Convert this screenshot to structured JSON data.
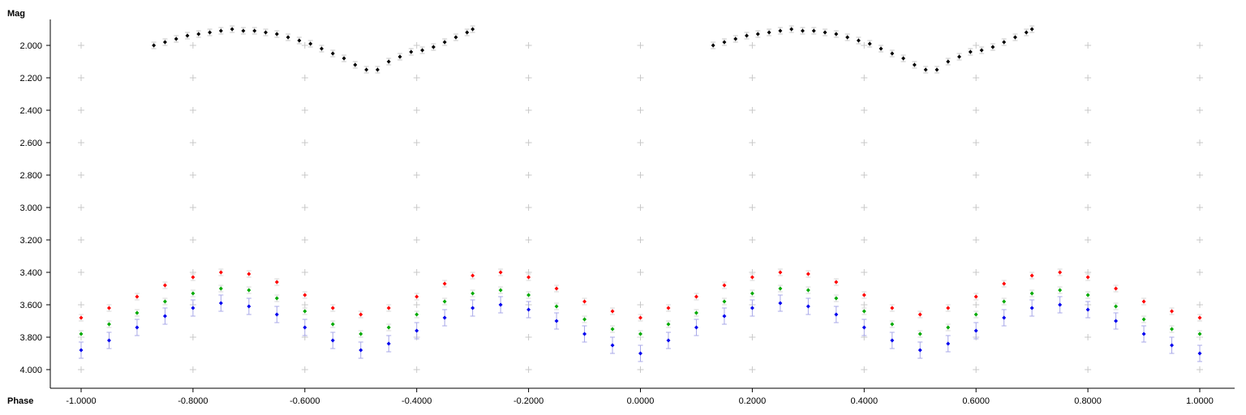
{
  "chart_data": {
    "type": "scatter",
    "title": "",
    "xlabel": "Phase",
    "ylabel": "Mag",
    "xlim": [
      -1.05,
      1.05
    ],
    "ylim": [
      1.85,
      4.05
    ],
    "y_inverted": true,
    "grid": "plus-markers",
    "x_ticks": [
      -1.0,
      -0.8,
      -0.6,
      -0.4,
      -0.2,
      0.0,
      0.2,
      0.4,
      0.6,
      0.8,
      1.0
    ],
    "x_tick_labels": [
      "-1.0000",
      "-0.8000",
      "-0.6000",
      "-0.4000",
      "-0.2000",
      "0.0000",
      "0.2000",
      "0.4000",
      "0.6000",
      "0.8000",
      "1.0000"
    ],
    "y_ticks": [
      2.0,
      2.2,
      2.4,
      2.6,
      2.8,
      3.0,
      3.2,
      3.4,
      3.6,
      3.8,
      4.0
    ],
    "y_tick_labels": [
      "2.000",
      "2.200",
      "2.400",
      "2.600",
      "2.800",
      "3.000",
      "3.200",
      "3.400",
      "3.600",
      "3.800",
      "4.000"
    ],
    "series": [
      {
        "color": "#000000",
        "error_bar_color": "#c8c8c8",
        "error": 0.02,
        "points": [
          [
            -0.87,
            2.0
          ],
          [
            -0.85,
            1.98
          ],
          [
            -0.83,
            1.96
          ],
          [
            -0.81,
            1.94
          ],
          [
            -0.79,
            1.93
          ],
          [
            -0.77,
            1.92
          ],
          [
            -0.75,
            1.91
          ],
          [
            -0.73,
            1.9
          ],
          [
            -0.71,
            1.91
          ],
          [
            -0.69,
            1.91
          ],
          [
            -0.67,
            1.92
          ],
          [
            -0.65,
            1.93
          ],
          [
            -0.63,
            1.95
          ],
          [
            -0.61,
            1.97
          ],
          [
            -0.59,
            1.99
          ],
          [
            -0.57,
            2.02
          ],
          [
            -0.55,
            2.05
          ],
          [
            -0.53,
            2.08
          ],
          [
            -0.51,
            2.12
          ],
          [
            -0.49,
            2.15
          ],
          [
            -0.47,
            2.15
          ],
          [
            -0.45,
            2.1
          ],
          [
            -0.43,
            2.07
          ],
          [
            -0.41,
            2.04
          ],
          [
            -0.39,
            2.03
          ],
          [
            -0.37,
            2.01
          ],
          [
            -0.35,
            1.98
          ],
          [
            -0.33,
            1.95
          ],
          [
            -0.31,
            1.92
          ],
          [
            -0.3,
            1.9
          ],
          [
            0.13,
            2.0
          ],
          [
            0.15,
            1.98
          ],
          [
            0.17,
            1.96
          ],
          [
            0.19,
            1.94
          ],
          [
            0.21,
            1.93
          ],
          [
            0.23,
            1.92
          ],
          [
            0.25,
            1.91
          ],
          [
            0.27,
            1.9
          ],
          [
            0.29,
            1.91
          ],
          [
            0.31,
            1.91
          ],
          [
            0.33,
            1.92
          ],
          [
            0.35,
            1.93
          ],
          [
            0.37,
            1.95
          ],
          [
            0.39,
            1.97
          ],
          [
            0.41,
            1.99
          ],
          [
            0.43,
            2.02
          ],
          [
            0.45,
            2.05
          ],
          [
            0.47,
            2.08
          ],
          [
            0.49,
            2.12
          ],
          [
            0.51,
            2.15
          ],
          [
            0.53,
            2.15
          ],
          [
            0.55,
            2.1
          ],
          [
            0.57,
            2.07
          ],
          [
            0.59,
            2.04
          ],
          [
            0.61,
            2.03
          ],
          [
            0.63,
            2.01
          ],
          [
            0.65,
            1.98
          ],
          [
            0.67,
            1.95
          ],
          [
            0.69,
            1.92
          ],
          [
            0.7,
            1.9
          ]
        ]
      },
      {
        "color": "#ff0000",
        "error_bar_color": "#d8d8d8",
        "error": 0.02,
        "points": [
          [
            -1.0,
            3.68
          ],
          [
            -0.95,
            3.62
          ],
          [
            -0.9,
            3.55
          ],
          [
            -0.85,
            3.48
          ],
          [
            -0.8,
            3.43
          ],
          [
            -0.75,
            3.4
          ],
          [
            -0.7,
            3.41
          ],
          [
            -0.65,
            3.46
          ],
          [
            -0.6,
            3.54
          ],
          [
            -0.55,
            3.62
          ],
          [
            -0.5,
            3.66
          ],
          [
            -0.45,
            3.62
          ],
          [
            -0.4,
            3.55
          ],
          [
            -0.35,
            3.47
          ],
          [
            -0.3,
            3.42
          ],
          [
            -0.25,
            3.4
          ],
          [
            -0.2,
            3.43
          ],
          [
            -0.15,
            3.5
          ],
          [
            -0.1,
            3.58
          ],
          [
            -0.05,
            3.64
          ],
          [
            0.0,
            3.68
          ],
          [
            0.05,
            3.62
          ],
          [
            0.1,
            3.55
          ],
          [
            0.15,
            3.48
          ],
          [
            0.2,
            3.43
          ],
          [
            0.25,
            3.4
          ],
          [
            0.3,
            3.41
          ],
          [
            0.35,
            3.46
          ],
          [
            0.4,
            3.54
          ],
          [
            0.45,
            3.62
          ],
          [
            0.5,
            3.66
          ],
          [
            0.55,
            3.62
          ],
          [
            0.6,
            3.55
          ],
          [
            0.65,
            3.47
          ],
          [
            0.7,
            3.42
          ],
          [
            0.75,
            3.4
          ],
          [
            0.8,
            3.43
          ],
          [
            0.85,
            3.5
          ],
          [
            0.9,
            3.58
          ],
          [
            0.95,
            3.64
          ],
          [
            1.0,
            3.68
          ]
        ]
      },
      {
        "color": "#00aa00",
        "error_bar_color": "#d8d8d8",
        "error": 0.02,
        "points": [
          [
            -1.0,
            3.78
          ],
          [
            -0.95,
            3.72
          ],
          [
            -0.9,
            3.65
          ],
          [
            -0.85,
            3.58
          ],
          [
            -0.8,
            3.53
          ],
          [
            -0.75,
            3.5
          ],
          [
            -0.7,
            3.51
          ],
          [
            -0.65,
            3.56
          ],
          [
            -0.6,
            3.64
          ],
          [
            -0.55,
            3.72
          ],
          [
            -0.5,
            3.78
          ],
          [
            -0.45,
            3.74
          ],
          [
            -0.4,
            3.66
          ],
          [
            -0.35,
            3.58
          ],
          [
            -0.3,
            3.53
          ],
          [
            -0.25,
            3.51
          ],
          [
            -0.2,
            3.54
          ],
          [
            -0.15,
            3.61
          ],
          [
            -0.1,
            3.69
          ],
          [
            -0.05,
            3.75
          ],
          [
            0.0,
            3.78
          ],
          [
            0.05,
            3.72
          ],
          [
            0.1,
            3.65
          ],
          [
            0.15,
            3.58
          ],
          [
            0.2,
            3.53
          ],
          [
            0.25,
            3.5
          ],
          [
            0.3,
            3.51
          ],
          [
            0.35,
            3.56
          ],
          [
            0.4,
            3.64
          ],
          [
            0.45,
            3.72
          ],
          [
            0.5,
            3.78
          ],
          [
            0.55,
            3.74
          ],
          [
            0.6,
            3.66
          ],
          [
            0.65,
            3.58
          ],
          [
            0.7,
            3.53
          ],
          [
            0.75,
            3.51
          ],
          [
            0.8,
            3.54
          ],
          [
            0.85,
            3.61
          ],
          [
            0.9,
            3.69
          ],
          [
            0.95,
            3.75
          ],
          [
            1.0,
            3.78
          ]
        ]
      },
      {
        "color": "#0000ee",
        "error_bar_color": "#a8a8e8",
        "error": 0.05,
        "points": [
          [
            -1.0,
            3.88
          ],
          [
            -0.95,
            3.82
          ],
          [
            -0.9,
            3.74
          ],
          [
            -0.85,
            3.67
          ],
          [
            -0.8,
            3.62
          ],
          [
            -0.75,
            3.59
          ],
          [
            -0.7,
            3.61
          ],
          [
            -0.65,
            3.66
          ],
          [
            -0.6,
            3.74
          ],
          [
            -0.55,
            3.82
          ],
          [
            -0.5,
            3.88
          ],
          [
            -0.45,
            3.84
          ],
          [
            -0.4,
            3.76
          ],
          [
            -0.35,
            3.68
          ],
          [
            -0.3,
            3.62
          ],
          [
            -0.25,
            3.6
          ],
          [
            -0.2,
            3.63
          ],
          [
            -0.15,
            3.7
          ],
          [
            -0.1,
            3.78
          ],
          [
            -0.05,
            3.85
          ],
          [
            0.0,
            3.9
          ],
          [
            0.05,
            3.82
          ],
          [
            0.1,
            3.74
          ],
          [
            0.15,
            3.67
          ],
          [
            0.2,
            3.62
          ],
          [
            0.25,
            3.59
          ],
          [
            0.3,
            3.61
          ],
          [
            0.35,
            3.66
          ],
          [
            0.4,
            3.74
          ],
          [
            0.45,
            3.82
          ],
          [
            0.5,
            3.88
          ],
          [
            0.55,
            3.84
          ],
          [
            0.6,
            3.76
          ],
          [
            0.65,
            3.68
          ],
          [
            0.7,
            3.62
          ],
          [
            0.75,
            3.6
          ],
          [
            0.8,
            3.63
          ],
          [
            0.85,
            3.7
          ],
          [
            0.9,
            3.78
          ],
          [
            0.95,
            3.85
          ],
          [
            1.0,
            3.9
          ]
        ]
      }
    ]
  }
}
